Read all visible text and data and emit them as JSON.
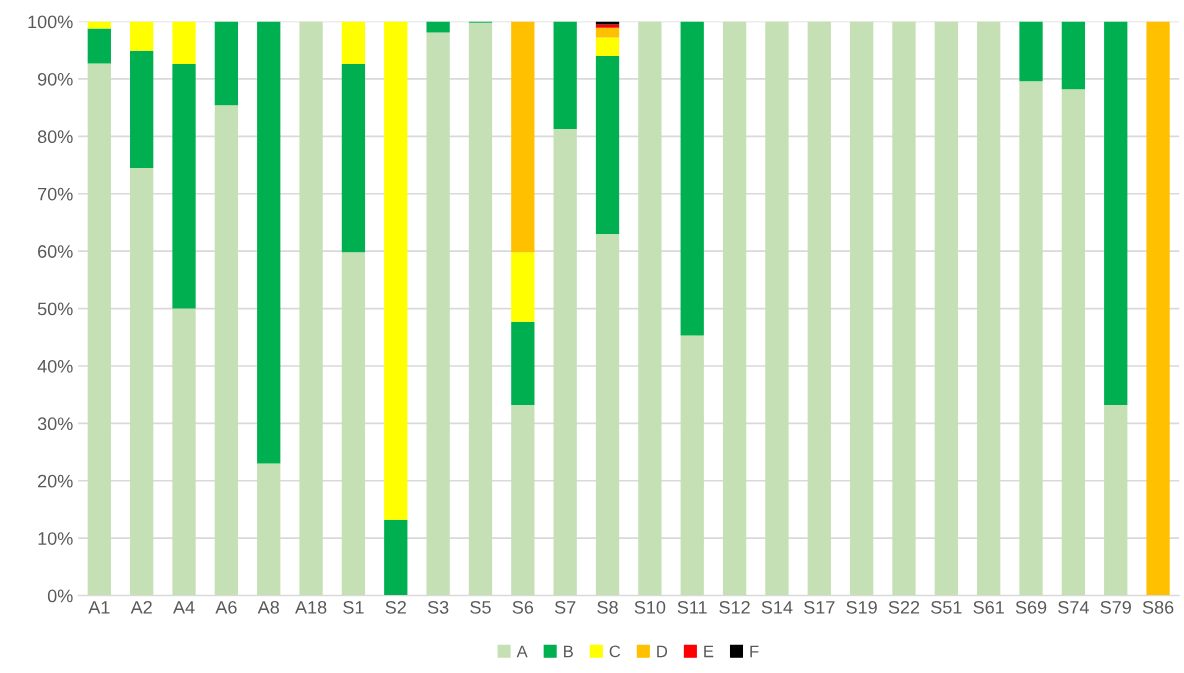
{
  "chart_data": {
    "type": "bar",
    "stacked": true,
    "categories": [
      "A1",
      "A2",
      "A4",
      "A6",
      "A8",
      "A18",
      "S1",
      "S2",
      "S3",
      "S5",
      "S6",
      "S7",
      "S8",
      "S10",
      "S11",
      "S12",
      "S14",
      "S17",
      "S19",
      "S22",
      "S51",
      "S61",
      "S69",
      "S74",
      "S79",
      "S86"
    ],
    "series": [
      {
        "name": "A",
        "color": "#c5e0b4",
        "values": [
          92.7,
          74.5,
          50,
          85.4,
          23,
          100,
          59.8,
          0,
          98.1,
          99.8,
          33.2,
          81.3,
          63,
          100,
          45.3,
          100,
          100,
          100,
          100,
          100,
          100,
          100,
          89.6,
          88.2,
          33.2,
          0
        ]
      },
      {
        "name": "B",
        "color": "#00b050",
        "values": [
          6.1,
          20.4,
          42.6,
          14.6,
          77,
          0,
          32.8,
          13.2,
          1.9,
          0.2,
          14.5,
          18.7,
          31,
          0,
          54.7,
          0,
          0,
          0,
          0,
          0,
          0,
          0,
          10.4,
          11.8,
          66.8,
          0
        ]
      },
      {
        "name": "C",
        "color": "#ffff00",
        "values": [
          1.2,
          5.1,
          7.4,
          0,
          0,
          0,
          7.4,
          86.8,
          0,
          0,
          12.1,
          0,
          3.2,
          0,
          0,
          0,
          0,
          0,
          0,
          0,
          0,
          0,
          0,
          0,
          0,
          0
        ]
      },
      {
        "name": "D",
        "color": "#ffc000",
        "values": [
          0,
          0,
          0,
          0,
          0,
          0,
          0,
          0,
          0,
          0,
          40.2,
          0,
          1.7,
          0,
          0,
          0,
          0,
          0,
          0,
          0,
          0,
          0,
          0,
          0,
          0,
          100
        ]
      },
      {
        "name": "E",
        "color": "#ff0000",
        "values": [
          0,
          0,
          0,
          0,
          0,
          0,
          0,
          0,
          0,
          0,
          0,
          0,
          0.6,
          0,
          0,
          0,
          0,
          0,
          0,
          0,
          0,
          0,
          0,
          0,
          0,
          0
        ]
      },
      {
        "name": "F",
        "color": "#000000",
        "values": [
          0,
          0,
          0,
          0,
          0,
          0,
          0,
          0,
          0,
          0,
          0,
          0,
          0.5,
          0,
          0,
          0,
          0,
          0,
          0,
          0,
          0,
          0,
          0,
          0,
          0,
          0
        ]
      }
    ],
    "ylim": [
      0,
      100
    ],
    "yticks": [
      {
        "value": 0,
        "label": "0%"
      },
      {
        "value": 10,
        "label": "10%"
      },
      {
        "value": 20,
        "label": "20%"
      },
      {
        "value": 30,
        "label": "30%"
      },
      {
        "value": 40,
        "label": "40%"
      },
      {
        "value": 50,
        "label": "50%"
      },
      {
        "value": 60,
        "label": "60%"
      },
      {
        "value": 70,
        "label": "70%"
      },
      {
        "value": 80,
        "label": "80%"
      },
      {
        "value": 90,
        "label": "90%"
      },
      {
        "value": 100,
        "label": "100%"
      }
    ],
    "grid": "y",
    "legend": "bottom"
  }
}
